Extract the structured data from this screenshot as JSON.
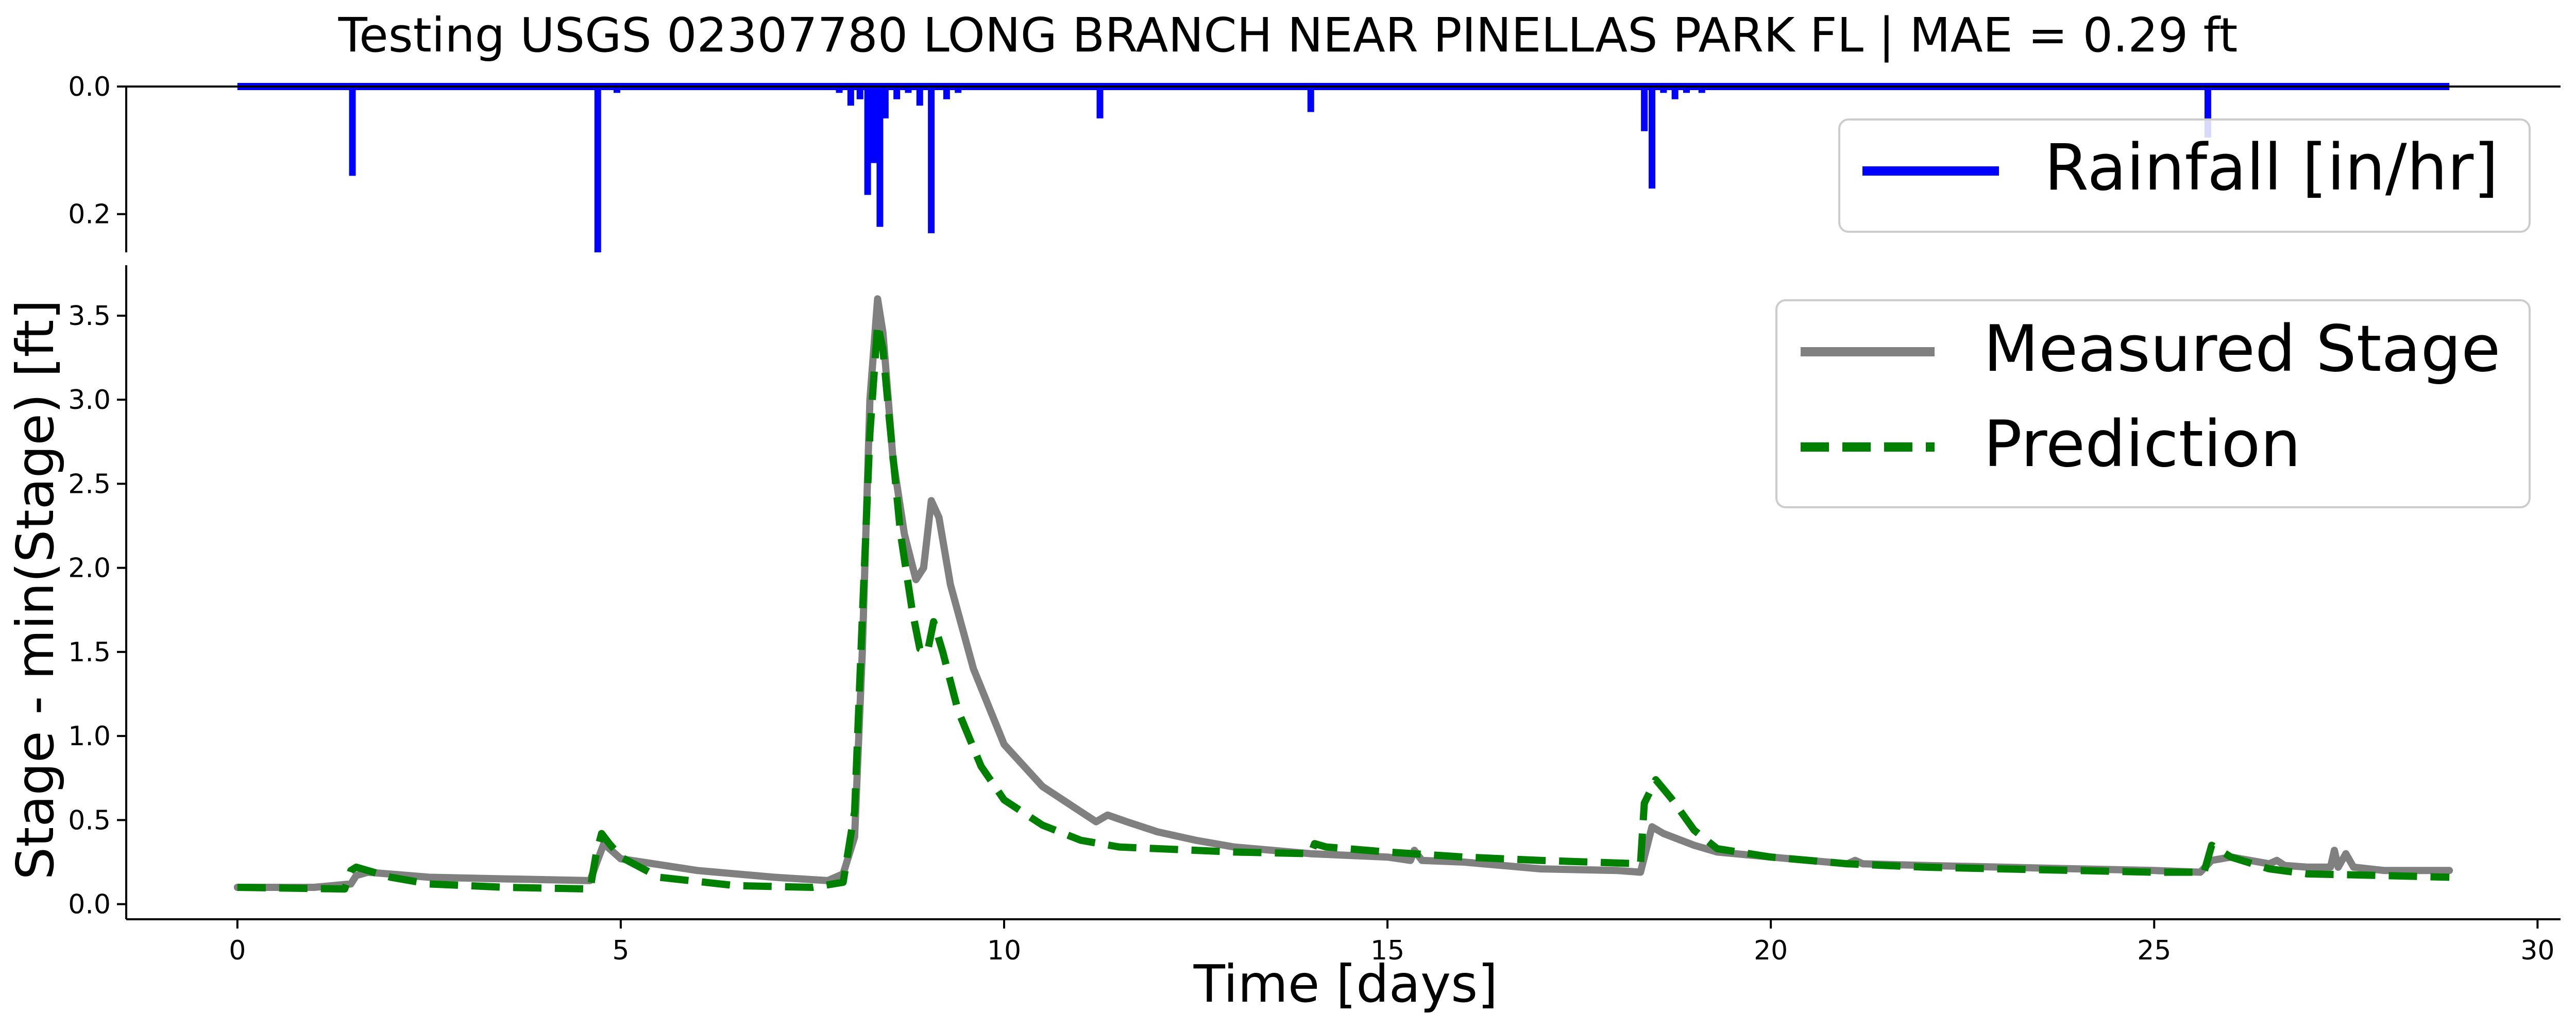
{
  "title": "Testing USGS 02307780 LONG BRANCH NEAR PINELLAS PARK FL | MAE = 0.29 ft",
  "colors": {
    "rain": "#0000ff",
    "measured": "#808080",
    "prediction": "#008000",
    "axis": "#000000"
  },
  "chart_data": [
    {
      "type": "line",
      "panel": "rainfall",
      "ylim": [
        0.26,
        0.0
      ],
      "y_inverted": true,
      "yticks": [
        0.0,
        0.2
      ],
      "ytick_labels": [
        "0.0",
        "0.2"
      ],
      "legend_position": "top-right",
      "series": [
        {
          "name": "Rainfall [in/hr]",
          "baseline": 0.0,
          "x_range": [
            0,
            28.85
          ],
          "spikes": [
            {
              "x": 1.5,
              "y": 0.14
            },
            {
              "x": 4.7,
              "y": 0.26
            },
            {
              "x": 4.95,
              "y": 0.01
            },
            {
              "x": 7.85,
              "y": 0.01
            },
            {
              "x": 8.0,
              "y": 0.03
            },
            {
              "x": 8.12,
              "y": 0.02
            },
            {
              "x": 8.22,
              "y": 0.17
            },
            {
              "x": 8.3,
              "y": 0.12
            },
            {
              "x": 8.38,
              "y": 0.22
            },
            {
              "x": 8.45,
              "y": 0.05
            },
            {
              "x": 8.6,
              "y": 0.02
            },
            {
              "x": 8.75,
              "y": 0.01
            },
            {
              "x": 8.9,
              "y": 0.03
            },
            {
              "x": 9.05,
              "y": 0.23
            },
            {
              "x": 9.25,
              "y": 0.02
            },
            {
              "x": 9.4,
              "y": 0.01
            },
            {
              "x": 11.25,
              "y": 0.05
            },
            {
              "x": 14.0,
              "y": 0.04
            },
            {
              "x": 18.35,
              "y": 0.07
            },
            {
              "x": 18.45,
              "y": 0.16
            },
            {
              "x": 18.6,
              "y": 0.01
            },
            {
              "x": 18.75,
              "y": 0.02
            },
            {
              "x": 18.9,
              "y": 0.01
            },
            {
              "x": 19.1,
              "y": 0.01
            },
            {
              "x": 25.7,
              "y": 0.08
            }
          ]
        }
      ]
    },
    {
      "type": "line",
      "panel": "stage",
      "xlabel": "Time [days]",
      "ylabel": "Stage - min(Stage) [ft]",
      "xlim": [
        -1.45,
        30.3
      ],
      "ylim": [
        -0.09,
        3.8
      ],
      "xticks": [
        0,
        5,
        10,
        15,
        20,
        25,
        30
      ],
      "yticks": [
        0.0,
        0.5,
        1.0,
        1.5,
        2.0,
        2.5,
        3.0,
        3.5
      ],
      "ytick_labels": [
        "0.0",
        "0.5",
        "1.0",
        "1.5",
        "2.0",
        "2.5",
        "3.0",
        "3.5"
      ],
      "legend_position": "top-right",
      "series": [
        {
          "name": "Measured Stage",
          "x": [
            0,
            1.0,
            1.48,
            1.55,
            1.7,
            2.5,
            3.5,
            4.6,
            4.68,
            4.78,
            5.0,
            6.0,
            7.0,
            7.7,
            7.9,
            8.05,
            8.15,
            8.25,
            8.35,
            8.42,
            8.55,
            8.7,
            8.85,
            8.95,
            9.05,
            9.15,
            9.3,
            9.6,
            10.0,
            10.5,
            11.0,
            11.2,
            11.35,
            11.6,
            12.0,
            12.5,
            13.0,
            14.0,
            15.0,
            15.3,
            15.35,
            15.45,
            16.0,
            17.0,
            18.0,
            18.3,
            18.45,
            18.6,
            19.0,
            19.3,
            20.0,
            21.0,
            21.1,
            21.2,
            22.0,
            23.0,
            24.0,
            25.0,
            25.6,
            25.75,
            26.0,
            26.5,
            26.6,
            26.7,
            27.0,
            27.3,
            27.35,
            27.4,
            27.5,
            27.6,
            28.0,
            28.85
          ],
          "y": [
            0.1,
            0.1,
            0.12,
            0.17,
            0.19,
            0.16,
            0.15,
            0.14,
            0.24,
            0.36,
            0.27,
            0.2,
            0.16,
            0.14,
            0.18,
            0.4,
            1.5,
            3.0,
            3.6,
            3.4,
            2.65,
            2.2,
            1.93,
            2.0,
            2.4,
            2.3,
            1.9,
            1.4,
            0.95,
            0.7,
            0.55,
            0.49,
            0.53,
            0.49,
            0.43,
            0.38,
            0.34,
            0.3,
            0.28,
            0.26,
            0.32,
            0.26,
            0.25,
            0.21,
            0.2,
            0.19,
            0.46,
            0.42,
            0.35,
            0.31,
            0.28,
            0.24,
            0.26,
            0.24,
            0.23,
            0.22,
            0.21,
            0.2,
            0.19,
            0.26,
            0.28,
            0.24,
            0.26,
            0.23,
            0.22,
            0.22,
            0.32,
            0.22,
            0.3,
            0.22,
            0.2,
            0.2
          ]
        },
        {
          "name": "Prediction",
          "x": [
            0,
            1.4,
            1.48,
            1.55,
            1.7,
            2.0,
            2.5,
            3.5,
            4.6,
            4.68,
            4.75,
            4.85,
            5.0,
            5.5,
            6.5,
            7.5,
            7.9,
            8.05,
            8.15,
            8.25,
            8.35,
            8.42,
            8.5,
            8.65,
            8.8,
            8.9,
            9.0,
            9.08,
            9.2,
            9.4,
            9.7,
            10.0,
            10.5,
            11.0,
            11.5,
            12.0,
            13.0,
            14.0,
            14.05,
            14.2,
            15.0,
            16.0,
            17.0,
            18.3,
            18.35,
            18.5,
            18.7,
            19.0,
            19.3,
            20.0,
            21.0,
            22.0,
            23.0,
            24.0,
            25.0,
            25.65,
            25.75,
            26.0,
            26.5,
            27.0,
            28.0,
            28.85
          ],
          "y": [
            0.1,
            0.09,
            0.2,
            0.22,
            0.2,
            0.16,
            0.12,
            0.1,
            0.09,
            0.3,
            0.42,
            0.36,
            0.28,
            0.16,
            0.11,
            0.1,
            0.13,
            0.55,
            1.7,
            2.8,
            3.45,
            3.3,
            2.9,
            2.2,
            1.75,
            1.52,
            1.5,
            1.68,
            1.5,
            1.15,
            0.82,
            0.62,
            0.47,
            0.38,
            0.34,
            0.33,
            0.31,
            0.3,
            0.36,
            0.34,
            0.31,
            0.28,
            0.26,
            0.24,
            0.6,
            0.74,
            0.63,
            0.44,
            0.33,
            0.28,
            0.24,
            0.22,
            0.21,
            0.2,
            0.19,
            0.19,
            0.35,
            0.28,
            0.21,
            0.18,
            0.17,
            0.16
          ]
        }
      ]
    }
  ]
}
